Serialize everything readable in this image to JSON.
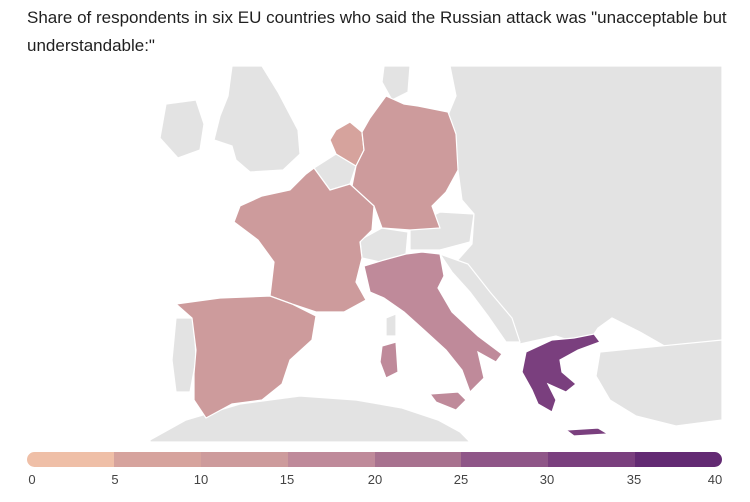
{
  "title": "Share of respondents in six EU countries who said the Russian attack was \"unacceptable but understandable:\"",
  "colors": {
    "background_land": "#e3e3e3",
    "border": "#ffffff",
    "scale": [
      "#efbfa7",
      "#d6a39d",
      "#cd9b9c",
      "#bf8a9a",
      "#a8728f",
      "#8f5688",
      "#7a3f7e",
      "#632a73"
    ]
  },
  "legend": {
    "ticks": [
      "0",
      "5",
      "10",
      "15",
      "20",
      "25",
      "30",
      "35",
      "40"
    ]
  },
  "chart_data": {
    "type": "choropleth",
    "title": "Share of respondents in six EU countries who said the Russian attack was \"unacceptable but understandable:\"",
    "scale_min": 0,
    "scale_max": 40,
    "bins": [
      0,
      5,
      10,
      15,
      20,
      25,
      30,
      35,
      40
    ],
    "regions": [
      {
        "name": "Netherlands",
        "value": 7
      },
      {
        "name": "Germany",
        "value": 12
      },
      {
        "name": "France",
        "value": 12
      },
      {
        "name": "Spain",
        "value": 12
      },
      {
        "name": "Italy",
        "value": 19
      },
      {
        "name": "Greece",
        "value": 33
      }
    ]
  }
}
